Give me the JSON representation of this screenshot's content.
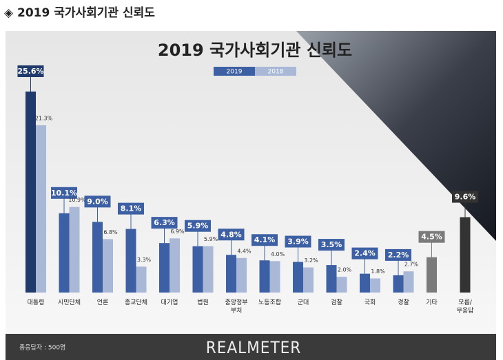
{
  "header": "◈ 2019 국가사회기관 신뢰도",
  "chart_data": {
    "type": "bar",
    "title": "2019 국가사회기관 신뢰도",
    "categories": [
      "대통령",
      "시민단체",
      "언론",
      "종교단체",
      "대기업",
      "법원",
      "중앙정부\n부처",
      "노동조합",
      "군대",
      "검찰",
      "국회",
      "경찰",
      "기타",
      "모름/\n무응답"
    ],
    "series": [
      {
        "name": "2019",
        "color": "#3d5fa3",
        "colors": [
          "#1f3a6b",
          "#3d5fa3",
          "#3d5fa3",
          "#3d5fa3",
          "#3d5fa3",
          "#3d5fa3",
          "#3d5fa3",
          "#3d5fa3",
          "#3d5fa3",
          "#3d5fa3",
          "#3d5fa3",
          "#3d5fa3",
          "#7a7a7a",
          "#333333"
        ],
        "values": [
          25.6,
          10.1,
          9.0,
          8.1,
          6.3,
          5.9,
          4.8,
          4.1,
          3.9,
          3.5,
          2.4,
          2.2,
          4.5,
          9.6
        ],
        "value_labels": [
          "25.6%",
          "10.1%",
          "9.0%",
          "8.1%",
          "6.3%",
          "5.9%",
          "4.8%",
          "4.1%",
          "3.9%",
          "3.5%",
          "2.4%",
          "2.2%",
          "4.5%",
          "9.6%"
        ]
      },
      {
        "name": "2018",
        "color": "#a9b8d6",
        "values": [
          21.3,
          10.9,
          6.8,
          3.3,
          6.9,
          5.9,
          4.4,
          4.0,
          3.2,
          2.0,
          1.8,
          2.7,
          null,
          null
        ],
        "value_labels": [
          "21.3%",
          "10.9%",
          "6.8%",
          "3.3%",
          "6.9%",
          "5.9%",
          "4.4%",
          "4.0%",
          "3.2%",
          "2.0%",
          "1.8%",
          "2.7%",
          null,
          null
        ]
      }
    ],
    "footer_note": "총응답자 : 500명",
    "brand": "REALMETER"
  }
}
